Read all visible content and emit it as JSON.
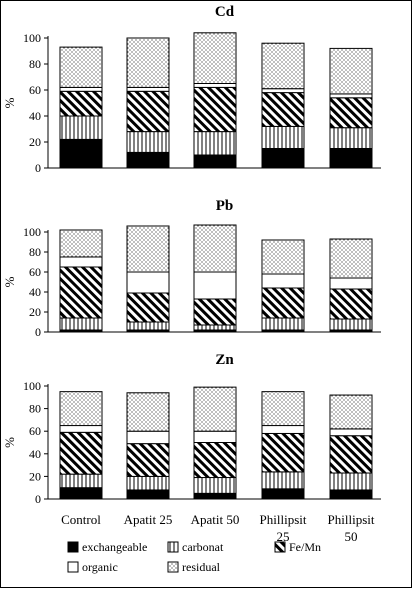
{
  "chart_data": [
    {
      "type": "bar",
      "stacked": true,
      "title": "Cd",
      "ylabel": "%",
      "ylim": [
        0,
        100
      ],
      "yticks": [
        0,
        20,
        40,
        60,
        80,
        100
      ],
      "categories": [
        "Control",
        "Apatit 25",
        "Apatit 50",
        "Phillipsit 25",
        "Phillipsit 50"
      ],
      "series": [
        {
          "name": "exchangeable",
          "values": [
            22,
            12,
            10,
            15,
            15
          ]
        },
        {
          "name": "carbonat",
          "values": [
            18,
            16,
            18,
            17,
            16
          ]
        },
        {
          "name": "Fe/Mn",
          "values": [
            19,
            31,
            34,
            26,
            23
          ]
        },
        {
          "name": "organic",
          "values": [
            3,
            3,
            3,
            3,
            3
          ]
        },
        {
          "name": "residual",
          "values": [
            31,
            38,
            39,
            35,
            35
          ]
        }
      ]
    },
    {
      "type": "bar",
      "stacked": true,
      "title": "Pb",
      "ylabel": "%",
      "ylim": [
        0,
        100
      ],
      "yticks": [
        0,
        20,
        40,
        60,
        80,
        100
      ],
      "categories": [
        "Control",
        "Apatit 25",
        "Apatit 50",
        "Phillipsit 25",
        "Phillipsit 50"
      ],
      "series": [
        {
          "name": "exchangeable",
          "values": [
            2,
            2,
            2,
            2,
            2
          ]
        },
        {
          "name": "carbonat",
          "values": [
            12,
            8,
            5,
            12,
            11
          ]
        },
        {
          "name": "Fe/Mn",
          "values": [
            51,
            29,
            26,
            30,
            30
          ]
        },
        {
          "name": "organic",
          "values": [
            10,
            21,
            27,
            14,
            11
          ]
        },
        {
          "name": "residual",
          "values": [
            27,
            46,
            47,
            34,
            39
          ]
        }
      ]
    },
    {
      "type": "bar",
      "stacked": true,
      "title": "Zn",
      "ylabel": "%",
      "ylim": [
        0,
        100
      ],
      "yticks": [
        0,
        20,
        40,
        60,
        80,
        100
      ],
      "categories": [
        "Control",
        "Apatit 25",
        "Apatit 50",
        "Phillipsit 25",
        "Phillipsit 50"
      ],
      "series": [
        {
          "name": "exchangeable",
          "values": [
            10,
            8,
            5,
            9,
            8
          ]
        },
        {
          "name": "carbonat",
          "values": [
            12,
            12,
            14,
            15,
            15
          ]
        },
        {
          "name": "Fe/Mn",
          "values": [
            37,
            29,
            31,
            34,
            33
          ]
        },
        {
          "name": "organic",
          "values": [
            6,
            11,
            10,
            7,
            6
          ]
        },
        {
          "name": "residual",
          "values": [
            30,
            34,
            39,
            30,
            30
          ]
        }
      ]
    }
  ],
  "axis": {
    "category_labels": [
      {
        "line1": "Control",
        "line2": ""
      },
      {
        "line1": "Apatit  25",
        "line2": ""
      },
      {
        "line1": "Apatit  50",
        "line2": ""
      },
      {
        "line1": "Phillipsit",
        "line2": "25"
      },
      {
        "line1": "Phillipsit",
        "line2": "50"
      }
    ]
  },
  "legend": {
    "placement": "bottom",
    "items": [
      {
        "label": "exchangeable",
        "pattern": "solid-black"
      },
      {
        "label": "carbonat",
        "pattern": "vertical-lines"
      },
      {
        "label": "Fe/Mn",
        "pattern": "diagonal-hatch"
      },
      {
        "label": "organic",
        "pattern": "white"
      },
      {
        "label": "residual",
        "pattern": "dots"
      }
    ]
  }
}
